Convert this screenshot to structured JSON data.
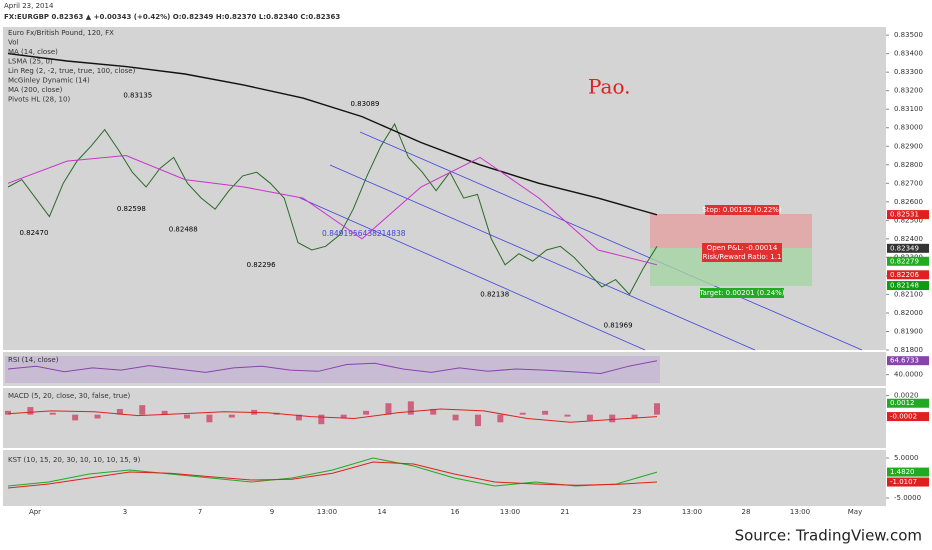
{
  "chart_data": {
    "type": "line",
    "date": "April 23, 2014",
    "symbol_line": "FX:EURGBP 0.82363 ▲ +0.00343 (+0.42%) O:0.82349 H:0.82370 L:0.82340 C:0.82363",
    "legend": [
      "Euro Fx/British Pound, 120, FX",
      "Vol",
      "MA (14, close)",
      "LSMA (25, 0)",
      "Lin Reg (2, -2, true, true, 100, close)",
      "McGinley Dynamic (14)",
      "MA (200, close)",
      "Pivots HL (28, 10)"
    ],
    "annotation": "Pao.",
    "channel_label": "0.8491956438214838",
    "source": "Source: TradingView.com",
    "x_labels": [
      "Apr",
      "3",
      "7",
      "9",
      "13:00",
      "14",
      "16",
      "13:00",
      "21",
      "23",
      "13:00",
      "28",
      "13:00",
      "May"
    ],
    "ylim": [
      0.818,
      0.8356
    ],
    "yticks": [
      {
        "value": 0.835,
        "label": "0.83500"
      },
      {
        "value": 0.834,
        "label": "0.83400"
      },
      {
        "value": 0.833,
        "label": "0.83300"
      },
      {
        "value": 0.832,
        "label": "0.83200"
      },
      {
        "value": 0.831,
        "label": "0.83100"
      },
      {
        "value": 0.83,
        "label": "0.83000"
      },
      {
        "value": 0.829,
        "label": "0.82900"
      },
      {
        "value": 0.828,
        "label": "0.82800"
      },
      {
        "value": 0.827,
        "label": "0.82700"
      },
      {
        "value": 0.826,
        "label": "0.82600"
      },
      {
        "value": 0.825,
        "label": "0.82500"
      },
      {
        "value": 0.824,
        "label": "0.82400"
      },
      {
        "value": 0.823,
        "label": "0.82300"
      },
      {
        "value": 0.822,
        "label": "0.82200"
      },
      {
        "value": 0.821,
        "label": "0.82100"
      },
      {
        "value": 0.82,
        "label": "0.82000"
      },
      {
        "value": 0.819,
        "label": "0.81900"
      },
      {
        "value": 0.818,
        "label": "0.81800"
      }
    ],
    "series": [
      {
        "name": "Close",
        "color": "#2a6b2a",
        "values": [
          0.8268,
          0.8272,
          0.8262,
          0.8252,
          0.827,
          0.8282,
          0.829,
          0.8299,
          0.8288,
          0.8276,
          0.8268,
          0.8278,
          0.8284,
          0.827,
          0.8262,
          0.8256,
          0.8266,
          0.8274,
          0.8276,
          0.827,
          0.8262,
          0.8238,
          0.8234,
          0.8236,
          0.8242,
          0.8256,
          0.8274,
          0.829,
          0.8302,
          0.8284,
          0.8276,
          0.8266,
          0.8276,
          0.8262,
          0.8264,
          0.824,
          0.8226,
          0.8232,
          0.8228,
          0.8234,
          0.8236,
          0.823,
          0.8222,
          0.8214,
          0.8218,
          0.821,
          0.8224,
          0.8236
        ]
      },
      {
        "name": "MA (200, close)",
        "color": "#111111",
        "values": [
          0.834,
          0.8336,
          0.8333,
          0.8329,
          0.8323,
          0.8316,
          0.8306,
          0.8292,
          0.828,
          0.827,
          0.8262,
          0.8253
        ]
      },
      {
        "name": "McGinley Dynamic (14)",
        "color": "#cc33cc",
        "values": [
          0.827,
          0.8282,
          0.8285,
          0.8272,
          0.8268,
          0.8262,
          0.824,
          0.8268,
          0.8284,
          0.8262,
          0.8234,
          0.8226
        ]
      }
    ],
    "pivots": [
      {
        "label": "0.83135",
        "value": 0.83135,
        "at": 0.2
      },
      {
        "label": "0.82470",
        "value": 0.8247,
        "at": 0.04
      },
      {
        "label": "0.82598",
        "value": 0.82598,
        "at": 0.19
      },
      {
        "label": "0.82488",
        "value": 0.82488,
        "at": 0.27
      },
      {
        "label": "0.82296",
        "value": 0.82296,
        "at": 0.39
      },
      {
        "label": "0.83089",
        "value": 0.83089,
        "at": 0.55
      },
      {
        "label": "0.82138",
        "value": 0.82138,
        "at": 0.75
      },
      {
        "label": "0.81969",
        "value": 0.81969,
        "at": 0.94
      }
    ],
    "position": {
      "stop": "Stop: 0.00182 (0.22%)",
      "pnl": "Open P&L: -0.00014",
      "ratio": "Risk/Reward Ratio: 1.1",
      "target": "Target: 0.00201 (0.24%)"
    },
    "price_labels": [
      {
        "value": 0.82531,
        "label": "0.82531",
        "color": "#e02020"
      },
      {
        "value": 0.82349,
        "label": "0.82349",
        "color": "#333333"
      },
      {
        "value": 0.82279,
        "label": "0.82279",
        "color": "#22aa22"
      },
      {
        "value": 0.82206,
        "label": "0.82206",
        "color": "#ffffff"
      },
      {
        "value": 0.82148,
        "label": "0.82148",
        "color": "#119911"
      }
    ],
    "rsi": {
      "title": "RSI (14, close)",
      "ylim": [
        20,
        80
      ],
      "yticks": [
        {
          "value": 40,
          "label": "40.0000"
        }
      ],
      "current": {
        "value": 64.6733,
        "label": "64.6733"
      },
      "color": "#8844aa",
      "values": [
        50,
        55,
        45,
        52,
        48,
        56,
        50,
        44,
        52,
        55,
        48,
        46,
        58,
        60,
        50,
        44,
        52,
        46,
        50,
        48,
        45,
        42,
        55,
        64.6733
      ]
    },
    "macd": {
      "title": "MACD (5, 20, close, 30, false, true)",
      "ylim": [
        -0.0035,
        0.0028
      ],
      "yticks": [
        {
          "value": 0.002,
          "label": "0.0020"
        }
      ],
      "labels": [
        {
          "value": 0.0012,
          "label": "0.0012",
          "color": "#22aa22"
        },
        {
          "value": -0.0002,
          "label": "-0.0002",
          "color": "#e02020"
        }
      ],
      "hist": [
        0.0004,
        0.0008,
        0.0002,
        -0.0006,
        -0.0004,
        0.0006,
        0.001,
        0.0004,
        -0.0004,
        -0.0008,
        -0.0003,
        0.0005,
        0.0002,
        -0.0006,
        -0.001,
        -0.0004,
        0.0004,
        0.0012,
        0.0014,
        0.0006,
        -0.0006,
        -0.0012,
        -0.0008,
        0.0002,
        0.0004,
        -0.0002,
        -0.0006,
        -0.0008,
        -0.0004,
        0.0012
      ],
      "line": [
        0.0001,
        0.0004,
        0.0003,
        -0.0001,
        0.0001,
        0.0003,
        0.0002,
        -0.0002,
        -0.0004,
        0.0002,
        0.0006,
        0.0004,
        -0.0004,
        -0.0008,
        -0.0005,
        -0.0002
      ]
    },
    "kst": {
      "title": "KST (10, 15, 20, 30, 10, 10, 10, 15, 9)",
      "ylim": [
        -7,
        7
      ],
      "yticks": [
        {
          "value": 5,
          "label": "5.0000"
        },
        {
          "value": -5,
          "label": "-5.0000"
        }
      ],
      "labels": [
        {
          "value": 1.482,
          "label": "1.4820",
          "color": "#22aa22"
        },
        {
          "value": -1.0107,
          "label": "-1.0107",
          "color": "#e02020"
        }
      ],
      "kst": [
        -2,
        -1,
        1,
        2,
        1,
        0,
        -1,
        0,
        2,
        5,
        3,
        0,
        -2,
        -1,
        -2,
        -1.5,
        1.482
      ],
      "signal": [
        -2.5,
        -1.5,
        0,
        1.5,
        1.2,
        0.3,
        -0.5,
        -0.3,
        1.2,
        4,
        3.5,
        1,
        -1,
        -1.5,
        -1.8,
        -1.6,
        -1.0107
      ]
    }
  }
}
